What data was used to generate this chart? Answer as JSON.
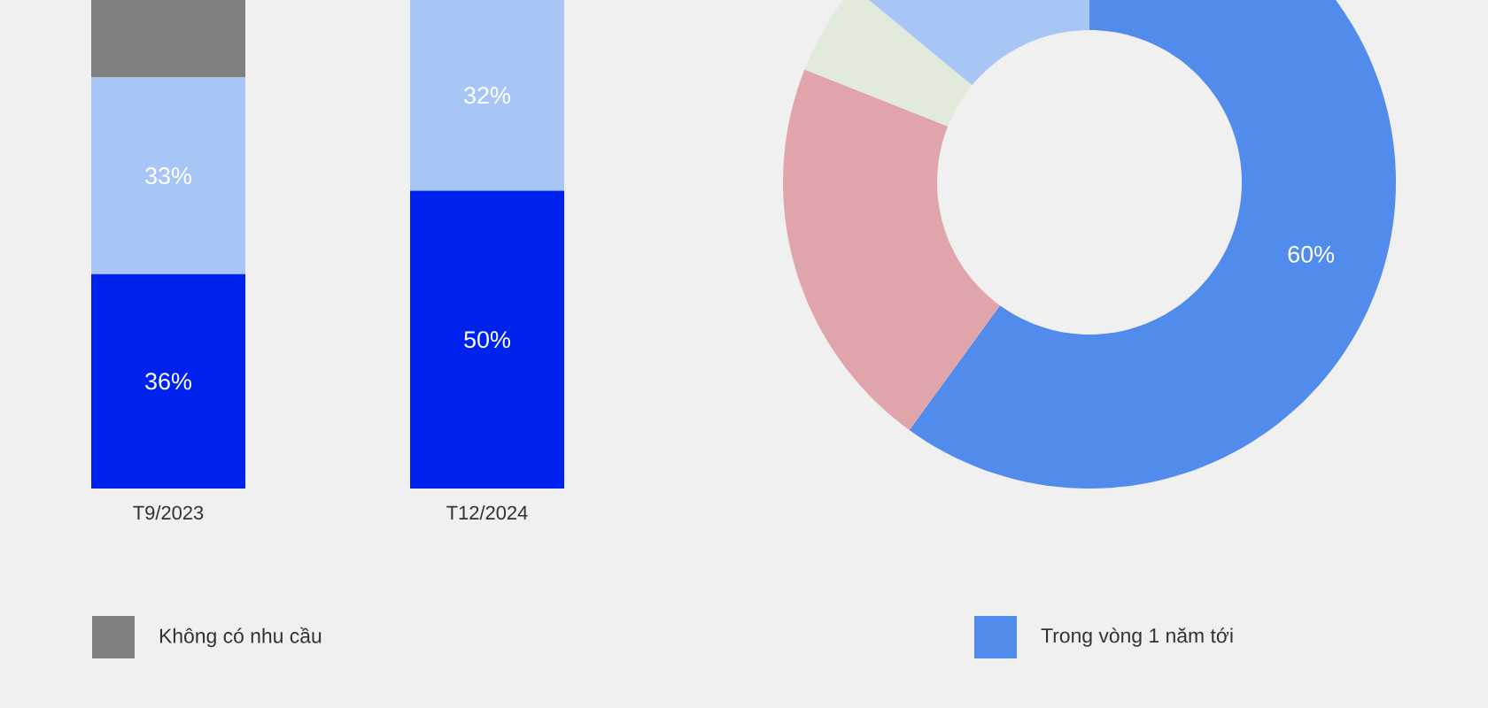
{
  "chart_data": [
    {
      "type": "bar",
      "stacked": true,
      "categories": [
        "T9/2023",
        "T12/2024"
      ],
      "tick_labels": "x",
      "legend": "bottom",
      "series": [
        {
          "color": "#0022ee",
          "values": [
            36,
            50
          ],
          "value_labels": [
            "36%",
            "50%"
          ]
        },
        {
          "color": "#a8c6f5",
          "values": [
            33,
            32
          ],
          "value_labels": [
            "33%",
            "32%"
          ]
        },
        {
          "name": "Không có nhu cầu",
          "color": "#808080",
          "values": [
            13,
            null
          ],
          "value_labels": [
            null,
            null
          ]
        }
      ]
    },
    {
      "type": "donut",
      "legend": "bottom",
      "categories": [
        "Trong vòng 1 năm tới",
        null,
        null,
        null
      ],
      "values": [
        60,
        21,
        5,
        14
      ],
      "colors": [
        "#518bec",
        "#e0a5aa",
        "#e1eadb",
        "#a8c6f5"
      ],
      "value_labels": [
        "60%",
        null,
        null,
        null
      ]
    }
  ]
}
